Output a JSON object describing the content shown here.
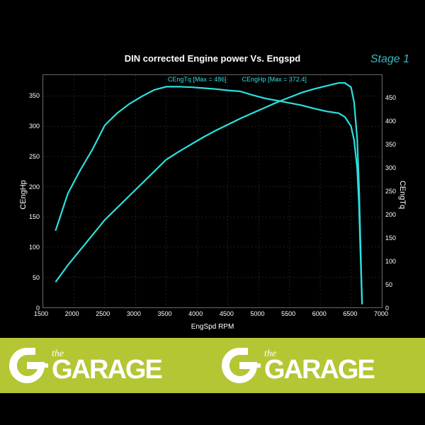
{
  "chart": {
    "title": "DIN corrected Engine power Vs. Engspd",
    "stage_label": "Stage 1",
    "stage_color": "#3db8c4",
    "x_label": "EngSpd RPM",
    "y_label_left": "CEngHp",
    "y_label_right": "CEngTq",
    "background_color": "#000000",
    "plot_bg": "#000000",
    "grid_color": "#444444",
    "line_color": "#2de0e0",
    "text_color": "#ffffff",
    "x_ticks": [
      1500,
      2000,
      2500,
      3000,
      3500,
      4000,
      4500,
      5000,
      5500,
      6000,
      6500,
      7000
    ],
    "y_ticks_left": [
      0,
      50,
      100,
      150,
      200,
      250,
      300,
      350
    ],
    "y_ticks_right": [
      0,
      50,
      100,
      150,
      200,
      250,
      300,
      350,
      400,
      450
    ],
    "xlim": [
      1500,
      7000
    ],
    "ylim_left": [
      0,
      385
    ],
    "ylim_right": [
      0,
      500
    ],
    "annotation_tq": "CEngTq [Max = 486]",
    "annotation_hp": "CEngHp [Max = 372.4]",
    "annotation_tq_x": 4100,
    "annotation_hp_x": 5300,
    "line_width": 2.2,
    "hp_series": [
      [
        1700,
        42
      ],
      [
        1900,
        70
      ],
      [
        2100,
        95
      ],
      [
        2300,
        120
      ],
      [
        2500,
        145
      ],
      [
        2700,
        165
      ],
      [
        2900,
        185
      ],
      [
        3100,
        205
      ],
      [
        3300,
        225
      ],
      [
        3500,
        245
      ],
      [
        3700,
        258
      ],
      [
        3900,
        270
      ],
      [
        4100,
        282
      ],
      [
        4300,
        293
      ],
      [
        4500,
        303
      ],
      [
        4700,
        313
      ],
      [
        4900,
        322
      ],
      [
        5100,
        331
      ],
      [
        5300,
        340
      ],
      [
        5500,
        348
      ],
      [
        5700,
        356
      ],
      [
        5900,
        362
      ],
      [
        6100,
        367
      ],
      [
        6300,
        372
      ],
      [
        6400,
        372
      ],
      [
        6500,
        365
      ],
      [
        6550,
        340
      ],
      [
        6600,
        280
      ],
      [
        6630,
        200
      ],
      [
        6650,
        120
      ],
      [
        6670,
        40
      ],
      [
        6680,
        5
      ]
    ],
    "tq_series": [
      [
        1700,
        165
      ],
      [
        1900,
        245
      ],
      [
        2100,
        295
      ],
      [
        2300,
        340
      ],
      [
        2500,
        392
      ],
      [
        2700,
        418
      ],
      [
        2900,
        438
      ],
      [
        3100,
        454
      ],
      [
        3300,
        468
      ],
      [
        3500,
        475
      ],
      [
        3700,
        475
      ],
      [
        3900,
        474
      ],
      [
        4100,
        472
      ],
      [
        4300,
        470
      ],
      [
        4500,
        467
      ],
      [
        4700,
        465
      ],
      [
        4900,
        457
      ],
      [
        5100,
        450
      ],
      [
        5300,
        445
      ],
      [
        5500,
        440
      ],
      [
        5700,
        435
      ],
      [
        5900,
        428
      ],
      [
        6100,
        422
      ],
      [
        6300,
        418
      ],
      [
        6400,
        410
      ],
      [
        6500,
        390
      ],
      [
        6550,
        360
      ],
      [
        6600,
        300
      ],
      [
        6630,
        220
      ],
      [
        6650,
        130
      ],
      [
        6670,
        50
      ],
      [
        6680,
        8
      ]
    ]
  },
  "footer": {
    "bg_color": "#b4c634",
    "logo_color": "#ffffff",
    "text_the": "the",
    "text_garage": "GARAGE"
  }
}
